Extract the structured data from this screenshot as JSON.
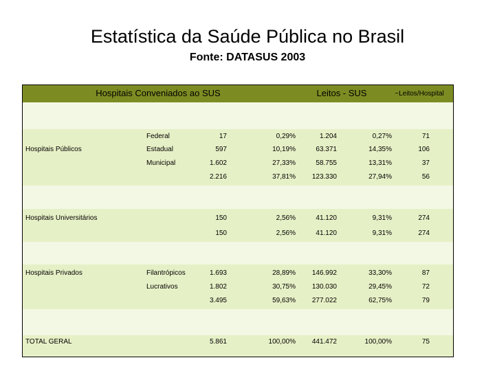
{
  "header": {
    "title": "Estatística da Saúde Pública no Brasil",
    "subtitle": "Fonte: DATASUS 2003"
  },
  "table": {
    "headers": [
      "Hospitais Conveniados ao SUS",
      "Leitos - SUS",
      "~Leitos/Hospital"
    ],
    "rows": [
      {
        "label": "Federal",
        "cells": [
          "17",
          "0,29%",
          "1.204",
          "0,27%",
          "71"
        ]
      },
      {
        "group": "Hospitais Públicos",
        "label": "Estadual",
        "cells": [
          "597",
          "10,19%",
          "63.371",
          "14,35%",
          "106"
        ]
      },
      {
        "label": "Municipal",
        "cells": [
          "1.602",
          "27,33%",
          "58.755",
          "13,31%",
          "37"
        ]
      },
      {
        "cells": [
          "2.216",
          "37,81%",
          "123.330",
          "27,94%",
          "56"
        ]
      },
      {
        "group": "Hospitais Universitários",
        "cells": [
          "150",
          "2,56%",
          "41.120",
          "9,31%",
          "274"
        ]
      },
      {
        "cells": [
          "150",
          "2,56%",
          "41.120",
          "9,31%",
          "274"
        ]
      },
      {
        "group": "Hospitais Privados",
        "label": "Filantrópicos",
        "cells": [
          "1.693",
          "28,89%",
          "146.992",
          "33,30%",
          "87"
        ]
      },
      {
        "label": "Lucrativos",
        "cells": [
          "1.802",
          "30,75%",
          "130.030",
          "29,45%",
          "72"
        ]
      },
      {
        "cells": [
          "3.495",
          "59,63%",
          "277.022",
          "62,75%",
          "79"
        ]
      },
      {
        "group": "TOTAL GERAL",
        "cells": [
          "5.861",
          "100,00%",
          "441.472",
          "100,00%",
          "75"
        ]
      }
    ]
  }
}
